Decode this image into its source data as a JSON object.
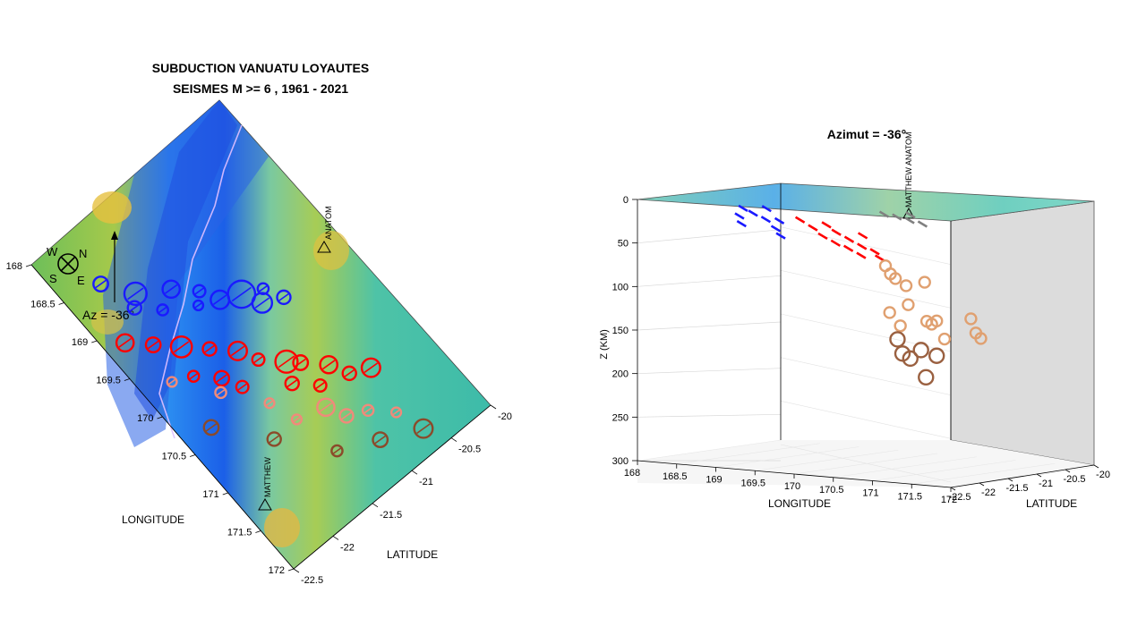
{
  "map_panel": {
    "title_line1": "SUBDUCTION VANUATU LOYAUTES",
    "title_line2": "SEISMES M >=  6  , 1961 - 2021",
    "az_label": "Az =  -36°",
    "compass": {
      "w": "W",
      "n": "N",
      "s": "S",
      "e": "E"
    },
    "longitude_label": "LONGITUDE",
    "latitude_label": "LATITUDE",
    "station_anatom": "ANATOM",
    "station_matthew": "MATTHEW",
    "lon_ticks": [
      "168",
      "168.5",
      "169",
      "169.5",
      "170",
      "170.5",
      "171",
      "171.5",
      "172"
    ],
    "lat_ticks": [
      "-20",
      "-20.5",
      "-21",
      "-21.5",
      "-22",
      "-22.5"
    ]
  },
  "section_panel": {
    "title": "Azimut = -36°",
    "z_label": "Z (KM)",
    "longitude_label": "LONGITUDE",
    "latitude_label": "LATITUDE",
    "station_labels": "MATTHEW ANATOM",
    "z_ticks": [
      "0",
      "50",
      "100",
      "150",
      "200",
      "250",
      "300"
    ],
    "lon_ticks": [
      "168",
      "168.5",
      "169",
      "169.5",
      "170",
      "170.5",
      "171",
      "171.5",
      "172"
    ],
    "lat_ticks": [
      "-22.5",
      "-22",
      "-21.5",
      "-21",
      "-20.5",
      "-20"
    ]
  },
  "chart_data": [
    {
      "type": "scatter",
      "title": "SUBDUCTION VANUATU LOYAUTES / SEISMES M >=  6  , 1961 - 2021",
      "xlabel": "LONGITUDE",
      "ylabel": "LATITUDE",
      "xlim": [
        168,
        172
      ],
      "ylim": [
        -22.5,
        -20
      ],
      "colors": {
        "shallow": "#1a1aff",
        "intermediate": "#ff0000",
        "light": "#f08a7a",
        "deep": "#8b4a2a",
        "olive": "#8a7a30"
      },
      "series": [
        {
          "color": "#1a1aff",
          "points": [
            [
              168.6,
              -20.4,
              6.6
            ],
            [
              168.9,
              -20.6,
              7.2
            ],
            [
              169.1,
              -20.9,
              6.8
            ],
            [
              169.3,
              -21.1,
              6.4
            ],
            [
              169.5,
              -21.2,
              6.9
            ],
            [
              169.6,
              -21.4,
              7.6
            ],
            [
              169.8,
              -21.5,
              7.0
            ],
            [
              169.9,
              -21.7,
              6.5
            ],
            [
              169.2,
              -20.7,
              6.3
            ],
            [
              169.0,
              -20.5,
              6.5
            ],
            [
              169.7,
              -21.6,
              6.3
            ],
            [
              169.4,
              -21.0,
              6.2
            ]
          ]
        },
        {
          "color": "#ff0000",
          "points": [
            [
              169.2,
              -20.2,
              6.8
            ],
            [
              169.4,
              -20.4,
              6.6
            ],
            [
              169.6,
              -20.6,
              7.1
            ],
            [
              169.8,
              -20.8,
              6.5
            ],
            [
              170.0,
              -21.0,
              6.9
            ],
            [
              170.2,
              -21.1,
              6.4
            ],
            [
              170.4,
              -21.3,
              7.2
            ],
            [
              170.5,
              -21.4,
              6.6
            ],
            [
              170.7,
              -21.6,
              6.8
            ],
            [
              170.9,
              -21.7,
              6.5
            ],
            [
              171.0,
              -21.9,
              6.9
            ],
            [
              170.3,
              -20.8,
              6.4
            ],
            [
              170.1,
              -20.7,
              6.6
            ],
            [
              169.9,
              -20.5,
              6.3
            ],
            [
              170.6,
              -21.2,
              6.5
            ],
            [
              170.8,
              -21.4,
              6.4
            ]
          ]
        },
        {
          "color": "#f08a7a",
          "points": [
            [
              169.8,
              -20.3,
              6.2
            ],
            [
              170.2,
              -20.6,
              6.3
            ],
            [
              170.6,
              -20.9,
              6.2
            ],
            [
              171.0,
              -21.3,
              6.8
            ],
            [
              171.3,
              -21.6,
              6.3
            ],
            [
              171.5,
              -21.8,
              6.2
            ],
            [
              170.9,
              -21.0,
              6.2
            ],
            [
              171.2,
              -21.4,
              6.5
            ]
          ]
        },
        {
          "color": "#8b4a2a",
          "points": [
            [
              170.4,
              -20.3,
              6.6
            ],
            [
              170.9,
              -20.7,
              6.5
            ],
            [
              171.4,
              -21.1,
              6.3
            ],
            [
              171.6,
              -21.5,
              6.6
            ],
            [
              171.8,
              -21.9,
              6.9
            ]
          ]
        }
      ]
    },
    {
      "type": "scatter",
      "title": "Azimut = -36°",
      "xlabel": "LONGITUDE",
      "ylabel": "LATITUDE",
      "zlabel": "Z (KM)",
      "xlim": [
        168,
        172
      ],
      "ylim": [
        -22.5,
        -20
      ],
      "zlim": [
        0,
        300
      ],
      "z_reversed": true,
      "series": [
        {
          "color": "#1a1aff",
          "points": [
            [
              168.8,
              -21.0,
              12
            ],
            [
              169.0,
              -21.2,
              15
            ],
            [
              169.2,
              -21.3,
              20
            ],
            [
              169.4,
              -21.5,
              28
            ],
            [
              169.1,
              -21.0,
              10
            ],
            [
              168.9,
              -21.4,
              18
            ],
            [
              169.3,
              -21.1,
              22
            ],
            [
              169.5,
              -21.6,
              35
            ],
            [
              169.0,
              -21.6,
              25
            ]
          ]
        },
        {
          "color": "#ff0000",
          "points": [
            [
              169.6,
              -21.2,
              18
            ],
            [
              169.8,
              -21.3,
              25
            ],
            [
              170.0,
              -21.5,
              32
            ],
            [
              170.2,
              -21.6,
              38
            ],
            [
              170.4,
              -21.7,
              42
            ],
            [
              170.1,
              -21.3,
              28
            ],
            [
              170.3,
              -21.4,
              34
            ],
            [
              170.5,
              -21.5,
              40
            ],
            [
              169.9,
              -21.1,
              22
            ],
            [
              170.6,
              -21.8,
              48
            ],
            [
              170.7,
              -21.6,
              44
            ],
            [
              170.4,
              -21.2,
              30
            ],
            [
              170.8,
              -21.7,
              50
            ]
          ]
        },
        {
          "color": "#808080",
          "points": [
            [
              170.6,
              -21.0,
              5
            ],
            [
              170.8,
              -21.1,
              6
            ],
            [
              171.0,
              -21.2,
              8
            ],
            [
              171.2,
              -21.3,
              10
            ],
            [
              170.9,
              -20.9,
              4
            ]
          ]
        },
        {
          "color": "#e0a070",
          "points": [
            [
              170.8,
              -21.5,
              60
            ],
            [
              170.9,
              -21.6,
              68
            ],
            [
              171.0,
              -21.7,
              72
            ],
            [
              171.1,
              -21.6,
              80
            ],
            [
              171.3,
              -21.5,
              75
            ],
            [
              171.2,
              -21.8,
              100
            ],
            [
              171.0,
              -21.9,
              110
            ],
            [
              171.4,
              -21.7,
              118
            ],
            [
              171.5,
              -21.8,
              120
            ],
            [
              171.1,
              -21.8,
              125
            ],
            [
              171.6,
              -21.9,
              115
            ],
            [
              171.7,
              -21.9,
              135
            ],
            [
              172.0,
              -21.8,
              110
            ],
            [
              172.1,
              -21.9,
              125
            ],
            [
              172.2,
              -22.0,
              130
            ]
          ]
        },
        {
          "color": "#9a6040",
          "points": [
            [
              171.1,
              -21.9,
              140
            ],
            [
              171.2,
              -22.0,
              155
            ],
            [
              171.4,
              -21.9,
              150
            ],
            [
              171.3,
              -22.0,
              160
            ],
            [
              171.5,
              -22.0,
              180
            ],
            [
              171.6,
              -21.9,
              155
            ]
          ]
        }
      ]
    }
  ]
}
